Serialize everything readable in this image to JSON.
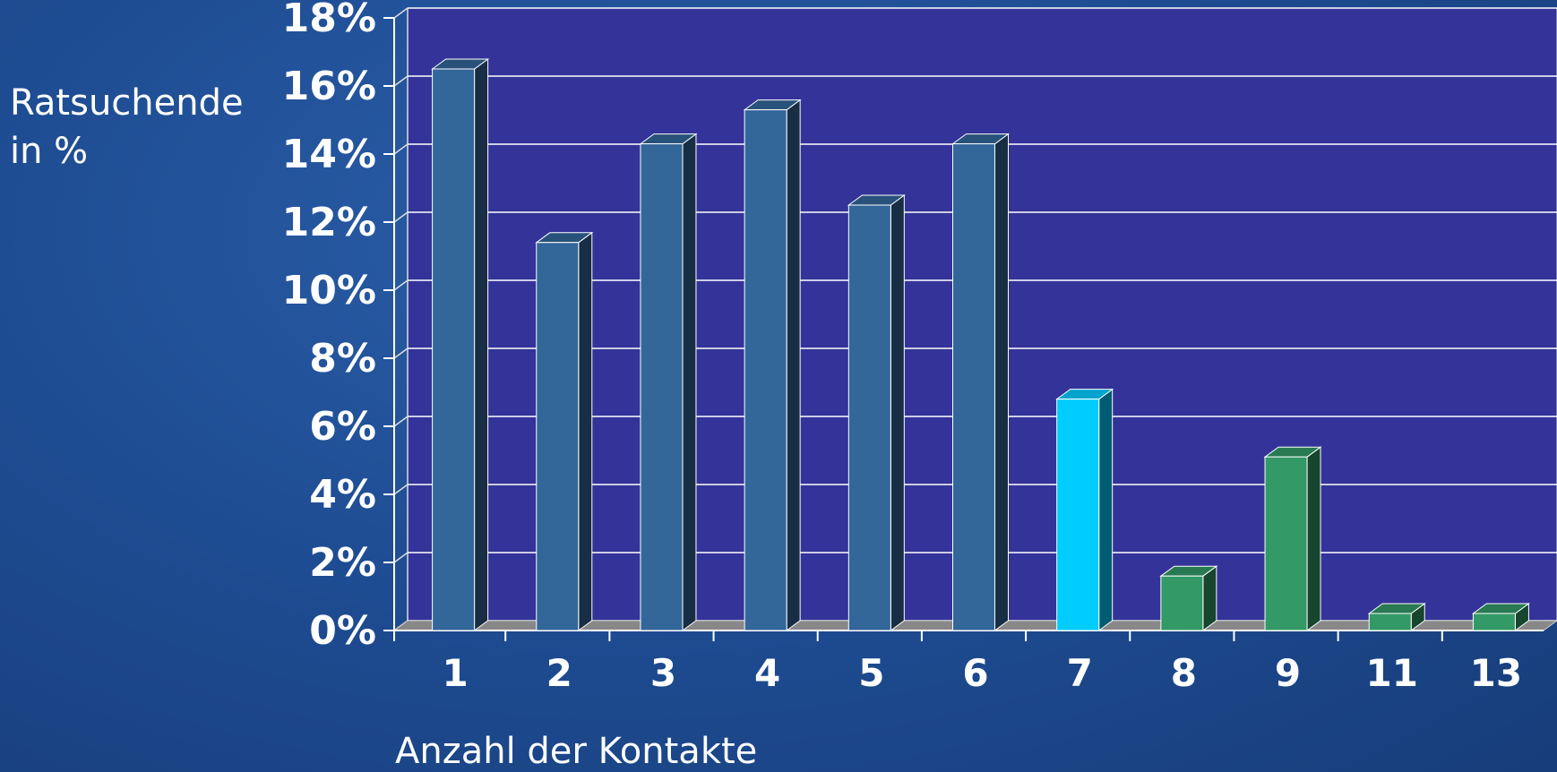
{
  "chart_data": {
    "type": "bar3d",
    "y_label": "Ratsuchende in %",
    "x_label": "Anzahl der Kontakte",
    "categories": [
      "1",
      "2",
      "3",
      "4",
      "5",
      "6",
      "7",
      "8",
      "9",
      "11",
      "13"
    ],
    "values": [
      16.5,
      11.4,
      14.3,
      15.3,
      12.5,
      14.3,
      6.8,
      1.6,
      5.1,
      0.5,
      0.5
    ],
    "colors": [
      "#336699",
      "#336699",
      "#336699",
      "#336699",
      "#336699",
      "#336699",
      "#00ccff",
      "#339966",
      "#339966",
      "#339966",
      "#339966"
    ],
    "ylim": [
      0,
      18
    ],
    "yticks": [
      {
        "value": 0,
        "label": "0%"
      },
      {
        "value": 2,
        "label": "2%"
      },
      {
        "value": 4,
        "label": "4%"
      },
      {
        "value": 6,
        "label": "6%"
      },
      {
        "value": 8,
        "label": "8%"
      },
      {
        "value": 10,
        "label": "10%"
      },
      {
        "value": 12,
        "label": "12%"
      },
      {
        "value": 14,
        "label": "14%"
      },
      {
        "value": 16,
        "label": "16%"
      },
      {
        "value": 18,
        "label": "18%"
      }
    ],
    "grid": true
  }
}
